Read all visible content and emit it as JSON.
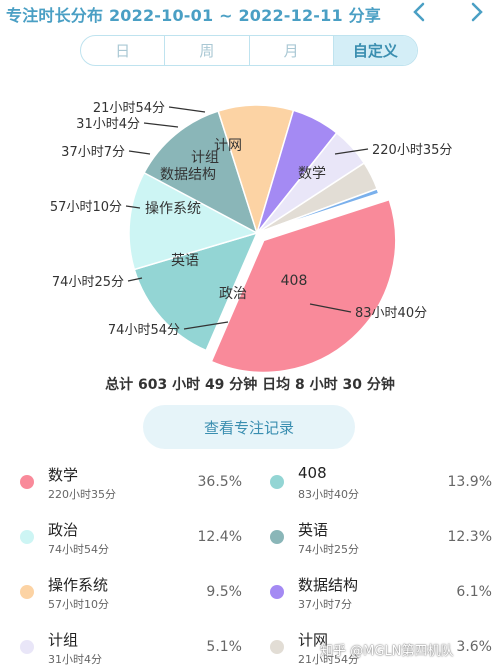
{
  "header": {
    "title": "专注时长分布  2022-10-01 ~ 2022-12-11 分享",
    "prev_icon": "chevron-left-icon",
    "next_icon": "chevron-right-icon"
  },
  "tabs": [
    {
      "label": "日",
      "active": false
    },
    {
      "label": "周",
      "active": false
    },
    {
      "label": "月",
      "active": false
    },
    {
      "label": "自定义",
      "active": true
    }
  ],
  "chart_data": {
    "type": "pie",
    "start_angle_deg": -18,
    "slices": [
      {
        "name": "数学",
        "label": "220小时35分",
        "value": 36.5,
        "color": "#f98a9a",
        "exploded": true
      },
      {
        "name": "408",
        "label": "83小时40分",
        "value": 13.9,
        "color": "#93d5d4"
      },
      {
        "name": "政治",
        "label": "74小时54分",
        "value": 12.4,
        "color": "#cdf5f4"
      },
      {
        "name": "英语",
        "label": "74小时25分",
        "value": 12.3,
        "color": "#8ab6b8"
      },
      {
        "name": "操作系统",
        "label": "57小时10分",
        "value": 9.5,
        "color": "#fcd3a4"
      },
      {
        "name": "数据结构",
        "label": "37小时7分",
        "value": 6.1,
        "color": "#a48af3"
      },
      {
        "name": "计组",
        "label": "31小时4分",
        "value": 5.1,
        "color": "#e9e6f8"
      },
      {
        "name": "计网",
        "label": "21小时54分",
        "value": 3.6,
        "color": "#e2ddd5"
      },
      {
        "name": "",
        "label": "",
        "value": 0.6,
        "color": "#7ab0ec"
      }
    ]
  },
  "summary": "总计 603 小时 49 分钟 日均 8 小时 30 分钟",
  "detail_button": "查看专注记录",
  "legend": [
    {
      "name": "数学",
      "time": "220小时35分",
      "pct": "36.5%",
      "color": "#f98a9a"
    },
    {
      "name": "408",
      "time": "83小时40分",
      "pct": "13.9%",
      "color": "#93d5d4"
    },
    {
      "name": "政治",
      "time": "74小时54分",
      "pct": "12.4%",
      "color": "#cdf5f4"
    },
    {
      "name": "英语",
      "time": "74小时25分",
      "pct": "12.3%",
      "color": "#8ab6b8"
    },
    {
      "name": "操作系统",
      "time": "57小时10分",
      "pct": "9.5%",
      "color": "#fcd3a4"
    },
    {
      "name": "数据结构",
      "time": "37小时7分",
      "pct": "6.1%",
      "color": "#a48af3"
    },
    {
      "name": "计组",
      "time": "31小时4分",
      "pct": "5.1%",
      "color": "#e9e6f8"
    },
    {
      "name": "计网",
      "time": "21小时54分",
      "pct": "3.6%",
      "color": "#e2ddd5"
    }
  ],
  "watermark": "知乎 @MGLN第四机队"
}
